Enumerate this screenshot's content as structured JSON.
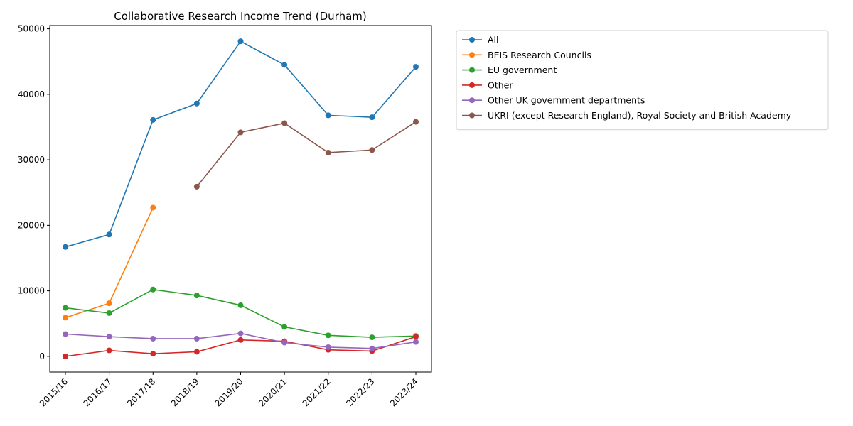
{
  "chart_data": {
    "type": "line",
    "title": "Collaborative Research Income Trend (Durham)",
    "xlabel": "",
    "ylabel": "",
    "categories": [
      "2015/16",
      "2016/17",
      "2017/18",
      "2018/19",
      "2019/20",
      "2020/21",
      "2021/22",
      "2022/23",
      "2023/24"
    ],
    "y_ticks": [
      0,
      10000,
      20000,
      30000,
      40000,
      50000
    ],
    "ylim": [
      -2400,
      50500
    ],
    "grid": false,
    "legend_position": "outside-top-right",
    "series": [
      {
        "name": "All",
        "color": "#1f77b4",
        "values": [
          16700,
          18600,
          36100,
          38600,
          48100,
          44500,
          36800,
          36500,
          44200
        ]
      },
      {
        "name": "BEIS Research Councils",
        "color": "#ff7f0e",
        "values": [
          5900,
          8100,
          22700,
          null,
          null,
          null,
          null,
          null,
          null
        ]
      },
      {
        "name": "EU government",
        "color": "#2ca02c",
        "values": [
          7400,
          6600,
          10200,
          9300,
          7800,
          4500,
          3200,
          2900,
          3100
        ]
      },
      {
        "name": "Other",
        "color": "#d62728",
        "values": [
          0,
          900,
          400,
          700,
          2500,
          2300,
          1000,
          800,
          3000
        ]
      },
      {
        "name": "Other UK government departments",
        "color": "#9467bd",
        "values": [
          3400,
          3000,
          2700,
          2700,
          3500,
          2100,
          1400,
          1200,
          2200
        ]
      },
      {
        "name": "UKRI (except Research England), Royal Society and British Academy",
        "color": "#8c564b",
        "values": [
          null,
          null,
          null,
          25900,
          34200,
          35600,
          31100,
          31500,
          35800
        ]
      }
    ]
  }
}
